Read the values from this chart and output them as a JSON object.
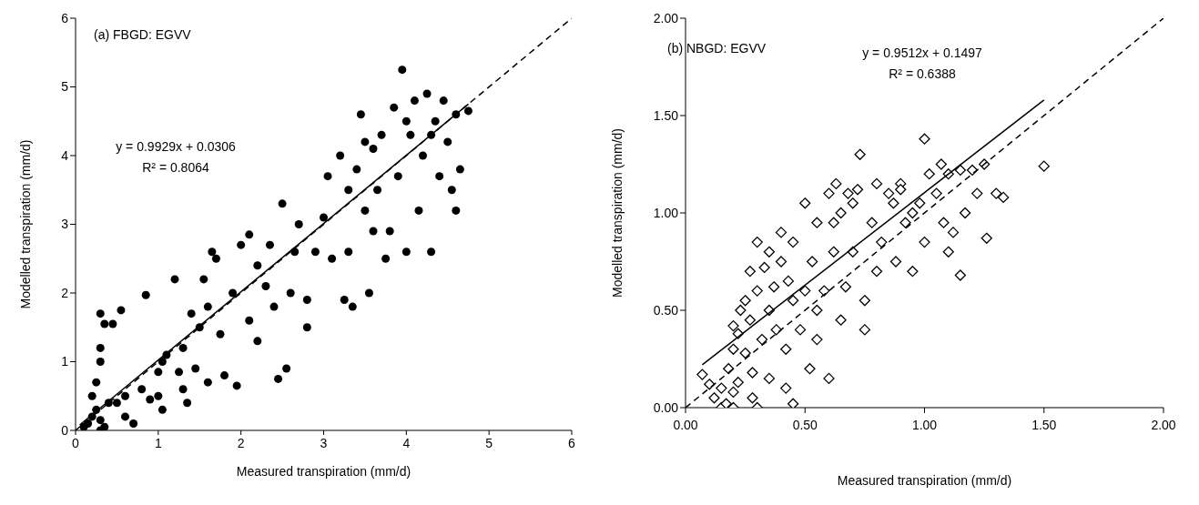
{
  "chart_data": [
    {
      "type": "scatter",
      "xlabel": "Measured transpiration (mm/d)",
      "ylabel": "Modelled transpiration (mm/d)",
      "annotations": [
        "(a) FBGD: EGVV",
        "y = 0.9929x + 0.0306",
        "R² = 0.8064"
      ],
      "xlim": [
        0,
        6
      ],
      "ylim": [
        0,
        6
      ],
      "xticks": [
        0,
        1,
        2,
        3,
        4,
        5,
        6
      ],
      "yticks": [
        0,
        1,
        2,
        3,
        4,
        5,
        6
      ],
      "series": [
        {
          "marker": "circle",
          "color": "#000000",
          "x": [
            0.1,
            0.15,
            0.2,
            0.25,
            0.3,
            0.3,
            0.35,
            0.2,
            0.25,
            0.3,
            0.3,
            0.35,
            0.3,
            0.45,
            0.55,
            0.4,
            0.5,
            0.6,
            0.7,
            0.6,
            0.8,
            0.85,
            0.9,
            1.0,
            1.0,
            1.05,
            1.1,
            1.2,
            1.3,
            1.3,
            1.35,
            1.4,
            1.45,
            1.5,
            1.55,
            1.6,
            1.65,
            1.7,
            1.75,
            1.8,
            1.9,
            1.95,
            2.0,
            2.1,
            2.1,
            2.2,
            2.3,
            2.4,
            2.45,
            2.5,
            2.55,
            2.6,
            2.65,
            2.7,
            2.8,
            2.9,
            3.0,
            3.05,
            3.1,
            3.2,
            3.25,
            3.3,
            3.35,
            3.4,
            3.45,
            3.5,
            3.55,
            3.6,
            3.65,
            3.7,
            3.75,
            3.8,
            3.85,
            3.9,
            3.95,
            4.0,
            4.05,
            4.1,
            4.15,
            4.2,
            4.25,
            4.3,
            4.35,
            4.4,
            4.45,
            4.5,
            4.55,
            4.6,
            4.65,
            4.6,
            4.75,
            3.3,
            2.2,
            1.6,
            2.8,
            3.6,
            4.0,
            4.3,
            3.5,
            2.35,
            1.25,
            1.05
          ],
          "values": [
            0.05,
            0.1,
            0.2,
            0.3,
            0.0,
            0.15,
            0.05,
            0.5,
            0.7,
            1.0,
            1.2,
            1.55,
            1.7,
            1.55,
            1.75,
            0.4,
            0.4,
            0.2,
            0.1,
            0.5,
            0.6,
            1.97,
            0.45,
            0.5,
            0.85,
            0.3,
            1.1,
            2.2,
            1.2,
            0.6,
            0.4,
            1.7,
            0.9,
            1.5,
            2.2,
            1.8,
            2.6,
            2.5,
            1.4,
            0.8,
            2.0,
            0.65,
            2.7,
            1.6,
            2.85,
            2.4,
            2.1,
            1.8,
            0.75,
            3.3,
            0.9,
            2.0,
            2.6,
            3.0,
            1.9,
            2.6,
            3.1,
            3.7,
            2.5,
            4.0,
            1.9,
            3.5,
            1.8,
            3.8,
            4.6,
            3.2,
            2.0,
            4.1,
            3.5,
            4.3,
            2.5,
            2.9,
            4.7,
            3.7,
            5.25,
            2.6,
            4.3,
            4.8,
            3.2,
            4.0,
            4.9,
            2.6,
            4.5,
            3.7,
            4.8,
            4.2,
            3.5,
            4.6,
            3.8,
            3.2,
            4.65,
            2.6,
            1.3,
            0.7,
            1.5,
            2.9,
            4.5,
            4.3,
            4.2,
            2.7,
            0.85,
            1.0
          ]
        },
        {
          "type": "line",
          "line_style": "solid",
          "color": "#000000",
          "x": [
            0.05,
            4.75
          ],
          "values": [
            0.08,
            4.75
          ]
        },
        {
          "type": "line",
          "line_style": "dashed",
          "color": "#000000",
          "x": [
            0,
            6
          ],
          "values": [
            0,
            6
          ]
        }
      ]
    },
    {
      "type": "scatter",
      "xlabel": "Measured transpiration (mm/d)",
      "ylabel": "Modelled transpiration (mm/d)",
      "annotations": [
        "(b) NBGD: EGVV",
        "y = 0.9512x + 0.1497",
        "R² = 0.6388"
      ],
      "xlim": [
        0,
        2
      ],
      "ylim": [
        0,
        2
      ],
      "xticks": [
        {
          "value": 0,
          "label": "0.00"
        },
        {
          "value": 0.5,
          "label": "0.50"
        },
        {
          "value": 1,
          "label": "1.00"
        },
        {
          "value": 1.5,
          "label": "1.50"
        },
        {
          "value": 2,
          "label": "2.00"
        }
      ],
      "yticks": [
        {
          "value": 0,
          "label": "0.00"
        },
        {
          "value": 0.5,
          "label": "0.50"
        },
        {
          "value": 1,
          "label": "1.00"
        },
        {
          "value": 1.5,
          "label": "1.50"
        },
        {
          "value": 2,
          "label": "2.00"
        }
      ],
      "series": [
        {
          "marker": "diamond",
          "color": "#000000",
          "x": [
            0.07,
            0.1,
            0.12,
            0.15,
            0.17,
            0.2,
            0.2,
            0.22,
            0.15,
            0.18,
            0.2,
            0.2,
            0.22,
            0.23,
            0.25,
            0.25,
            0.27,
            0.27,
            0.28,
            0.3,
            0.3,
            0.3,
            0.32,
            0.33,
            0.35,
            0.35,
            0.37,
            0.38,
            0.4,
            0.4,
            0.42,
            0.42,
            0.43,
            0.45,
            0.45,
            0.48,
            0.5,
            0.5,
            0.52,
            0.53,
            0.55,
            0.55,
            0.58,
            0.6,
            0.6,
            0.62,
            0.63,
            0.65,
            0.65,
            0.67,
            0.7,
            0.7,
            0.72,
            0.73,
            0.75,
            0.75,
            0.78,
            0.8,
            0.8,
            0.82,
            0.85,
            0.87,
            0.88,
            0.9,
            0.92,
            0.95,
            0.98,
            1.0,
            1.0,
            1.02,
            1.05,
            1.07,
            1.08,
            1.1,
            1.1,
            1.12,
            1.15,
            1.15,
            1.17,
            1.2,
            1.22,
            1.25,
            1.26,
            1.3,
            1.33,
            1.5,
            0.35,
            0.45,
            0.28,
            0.62,
            0.68,
            0.9,
            0.55,
            0.95
          ],
          "values": [
            0.17,
            0.12,
            0.05,
            0.0,
            0.02,
            0.0,
            0.08,
            0.13,
            0.1,
            0.2,
            0.3,
            0.42,
            0.38,
            0.5,
            0.28,
            0.55,
            0.45,
            0.7,
            0.18,
            0.0,
            0.6,
            0.85,
            0.35,
            0.72,
            0.5,
            0.8,
            0.62,
            0.4,
            0.75,
            0.9,
            0.1,
            0.3,
            0.65,
            0.85,
            0.02,
            0.4,
            1.05,
            0.6,
            0.2,
            0.75,
            0.95,
            0.5,
            0.6,
            1.1,
            0.15,
            0.8,
            1.15,
            1.0,
            0.45,
            0.62,
            1.05,
            0.8,
            1.12,
            1.3,
            0.55,
            0.4,
            0.95,
            1.15,
            0.7,
            0.85,
            1.1,
            1.05,
            0.75,
            1.15,
            0.95,
            0.7,
            1.05,
            1.38,
            0.85,
            1.2,
            1.1,
            1.25,
            0.95,
            0.8,
            1.2,
            0.9,
            1.22,
            0.68,
            1.0,
            1.22,
            1.1,
            1.25,
            0.87,
            1.1,
            1.08,
            1.24,
            0.15,
            0.55,
            0.05,
            0.95,
            1.1,
            1.12,
            0.35,
            1.0
          ]
        },
        {
          "type": "line",
          "line_style": "solid",
          "color": "#000000",
          "x": [
            0.07,
            1.5
          ],
          "values": [
            0.22,
            1.58
          ]
        },
        {
          "type": "line",
          "line_style": "dashed",
          "color": "#000000",
          "x": [
            0,
            2
          ],
          "values": [
            0,
            2
          ]
        }
      ]
    }
  ]
}
